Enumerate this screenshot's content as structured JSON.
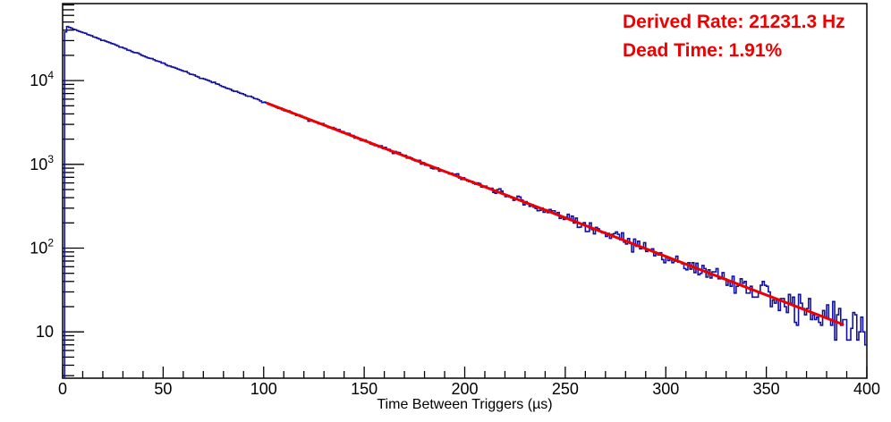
{
  "window": {
    "background": "#ffffff"
  },
  "annotations": {
    "derived_rate": "Derived Rate: 21231.3 Hz",
    "dead_time": "Dead Time: 1.91%",
    "color": "#ee0000"
  },
  "chart_data": {
    "type": "line",
    "subtype": "step-histogram-semilog-y",
    "title": "",
    "xlabel": "Time Between Triggers (µs)",
    "ylabel": "",
    "x_range": [
      0,
      400
    ],
    "y_range": [
      2.8,
      83000
    ],
    "y_scale": "log10",
    "grid": false,
    "legend": null,
    "n_bins": 400,
    "bin_width_us": 1,
    "x_major_ticks": [
      0,
      50,
      100,
      150,
      200,
      250,
      300,
      350,
      400
    ],
    "x_minor_tick_step": 10,
    "y_major_ticks": [
      10,
      100,
      1000,
      10000
    ],
    "y_major_tick_labels": [
      "10",
      "10^2",
      "10^3",
      "10^4"
    ],
    "frame_color": "#000000",
    "series": [
      {
        "name": "time-between-triggers-histogram",
        "color": "#11119e",
        "style": "step",
        "model": {
          "form": "A*exp(-t/tau)",
          "A": 46500,
          "tau_us": 47.1,
          "first_bin_us": 1,
          "first_bin_factor": 0.85,
          "noise": "poisson",
          "seed": 42
        }
      },
      {
        "name": "exponential-fit",
        "color": "#ee0000",
        "style": "line",
        "line_width": 3,
        "fit_range_us": [
          102,
          388
        ],
        "model": {
          "form": "A*exp(-t/tau)",
          "A": 46500,
          "tau_us": 47.1
        }
      }
    ],
    "anchor_points": [
      {
        "t_us": 3,
        "counts": 43500
      },
      {
        "t_us": 50,
        "counts": 16100
      },
      {
        "t_us": 100,
        "counts": 5550
      },
      {
        "t_us": 200,
        "counts": 665
      },
      {
        "t_us": 300,
        "counts": 80
      },
      {
        "t_us": 390,
        "counts": 12
      }
    ]
  }
}
